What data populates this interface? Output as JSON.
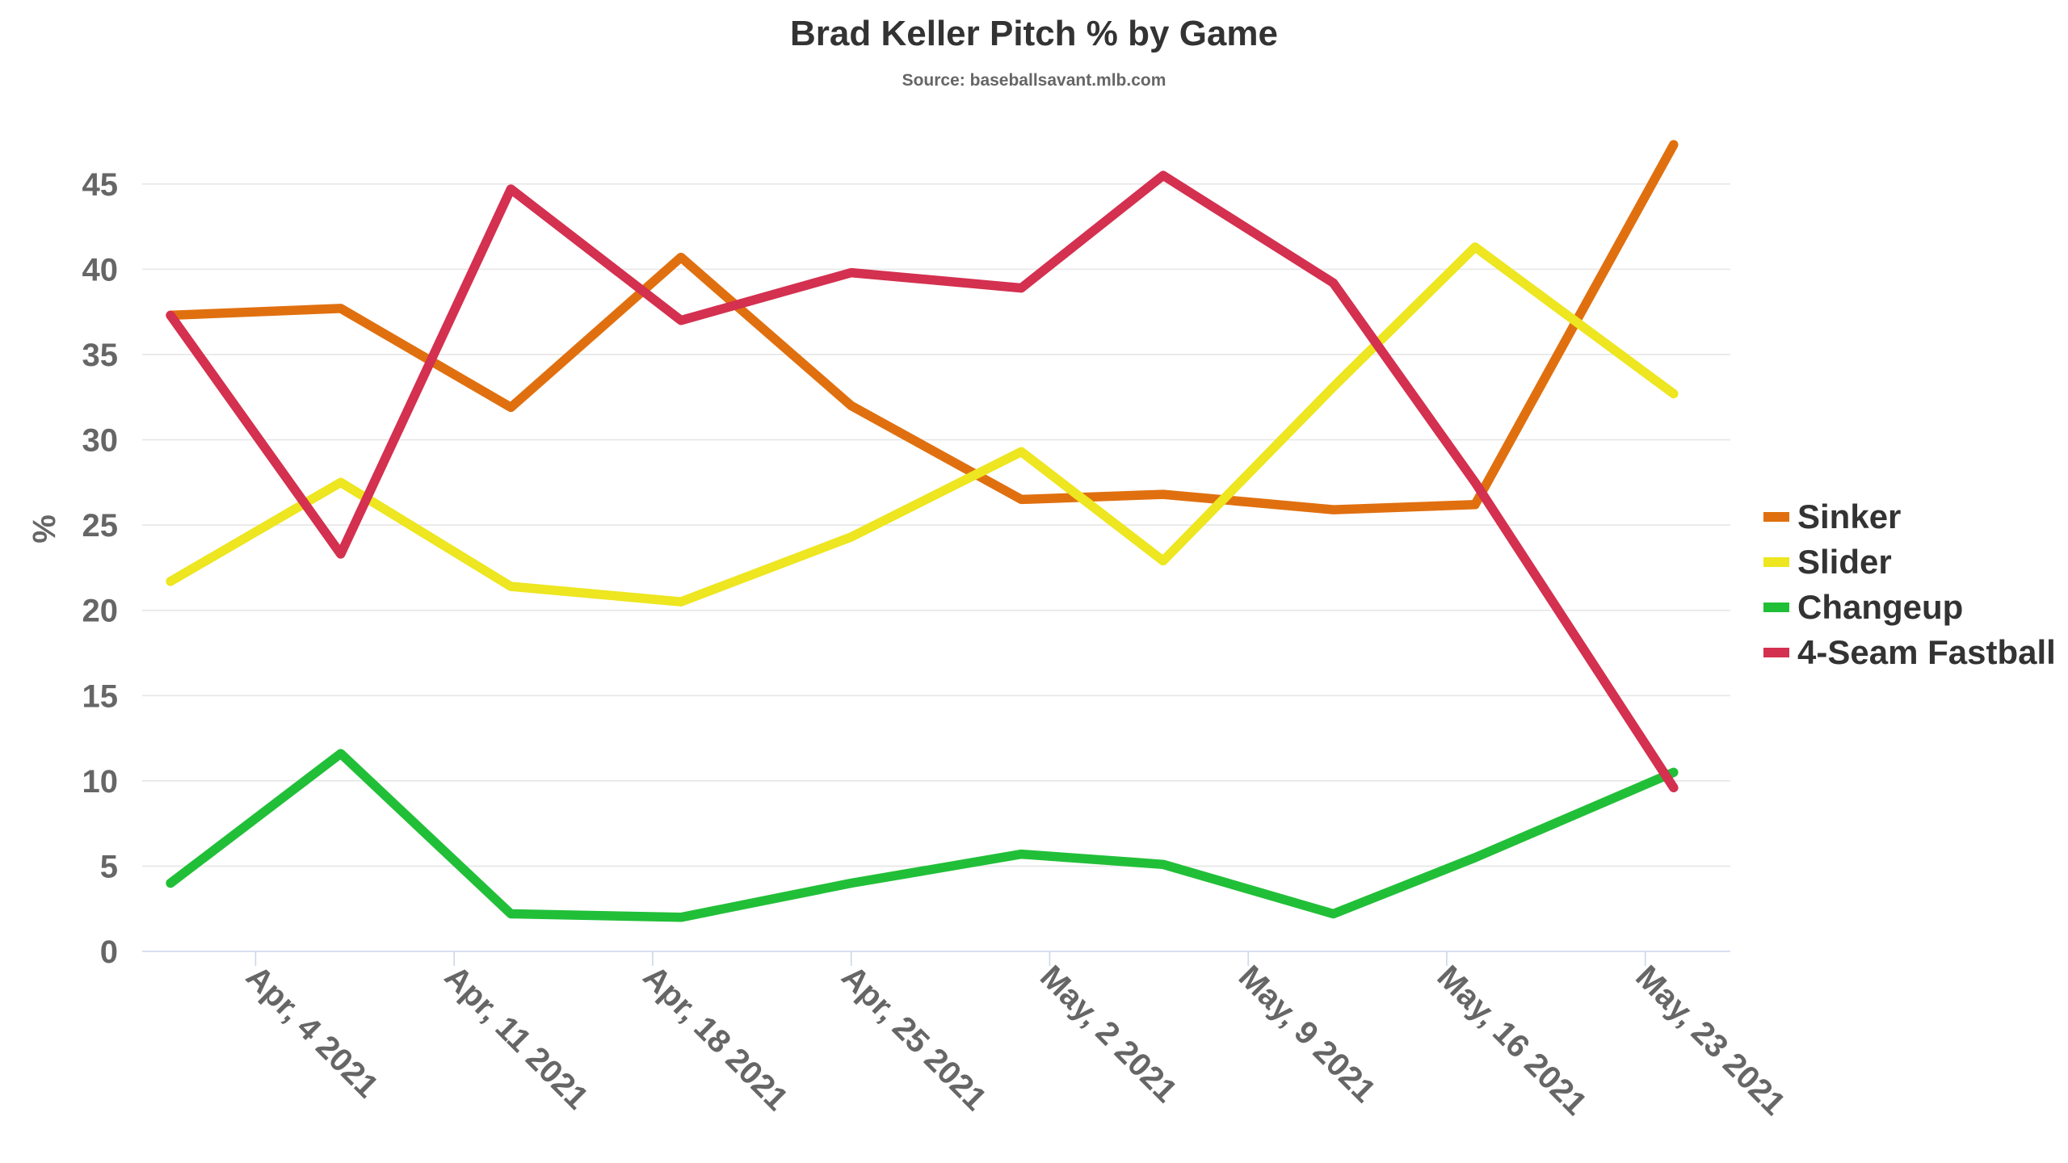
{
  "chart_data": {
    "type": "line",
    "title": "Brad Keller Pitch % by Game",
    "subtitle": "Source: baseballsavant.mlb.com",
    "ylabel": "%",
    "xlabel": "",
    "ylim": [
      0,
      47.5
    ],
    "yticks": [
      0,
      5,
      10,
      15,
      20,
      25,
      30,
      35,
      40,
      45
    ],
    "xlim": [
      "2021-03-31",
      "2021-05-26"
    ],
    "xticks": [
      {
        "date": "2021-04-04",
        "label": "Apr, 4 2021"
      },
      {
        "date": "2021-04-11",
        "label": "Apr, 11 2021"
      },
      {
        "date": "2021-04-18",
        "label": "Apr, 18 2021"
      },
      {
        "date": "2021-04-25",
        "label": "Apr, 25 2021"
      },
      {
        "date": "2021-05-02",
        "label": "May, 2 2021"
      },
      {
        "date": "2021-05-09",
        "label": "May, 9 2021"
      },
      {
        "date": "2021-05-16",
        "label": "May, 16 2021"
      },
      {
        "date": "2021-05-23",
        "label": "May, 23 2021"
      }
    ],
    "x": [
      "2021-04-01",
      "2021-04-07",
      "2021-04-13",
      "2021-04-19",
      "2021-04-25",
      "2021-05-01",
      "2021-05-06",
      "2021-05-12",
      "2021-05-17",
      "2021-05-24"
    ],
    "grid": true,
    "legend_position": "right",
    "series": [
      {
        "name": "Sinker",
        "color": "#e0700f",
        "values": [
          37.3,
          37.7,
          31.9,
          40.7,
          32.0,
          26.5,
          26.8,
          25.9,
          26.2,
          47.3
        ]
      },
      {
        "name": "Slider",
        "color": "#ede620",
        "values": [
          21.7,
          27.5,
          21.4,
          20.5,
          24.3,
          29.3,
          22.9,
          33.1,
          41.3,
          32.7
        ]
      },
      {
        "name": "Changeup",
        "color": "#21bf38",
        "values": [
          4.0,
          11.6,
          2.2,
          2.0,
          4.0,
          5.7,
          5.1,
          2.2,
          5.5,
          10.5
        ]
      },
      {
        "name": "4-Seam Fastball",
        "color": "#d4304f",
        "values": [
          37.3,
          23.3,
          44.7,
          37.0,
          39.8,
          38.9,
          45.5,
          39.2,
          27.5,
          9.6
        ]
      }
    ]
  }
}
